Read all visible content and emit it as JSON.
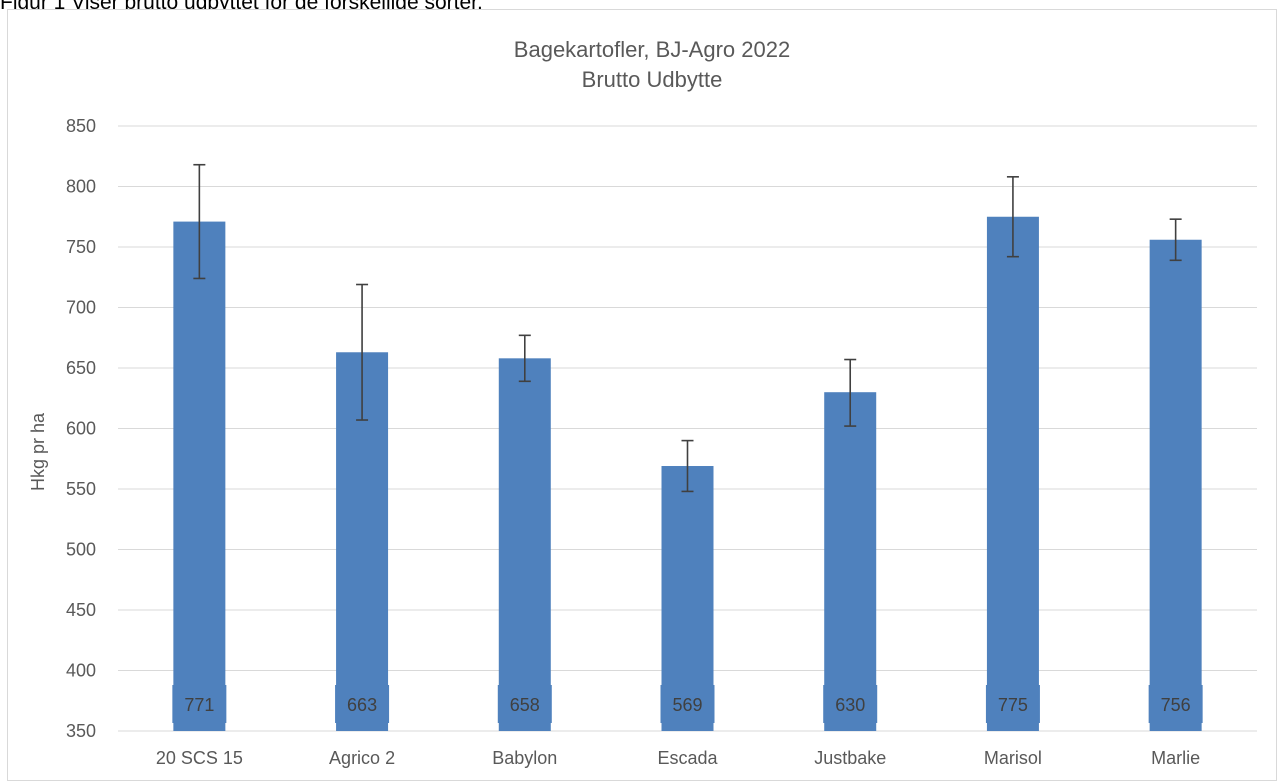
{
  "caption": "Figur 1 Viser brutto udbyttet for de forskellige sorter.",
  "chart_data": {
    "type": "bar",
    "title": "Bagekartofler, BJ-Agro 2022",
    "subtitle": "Brutto Udbytte",
    "xlabel": "",
    "ylabel": "Hkg pr ha",
    "ylim": [
      350,
      850
    ],
    "yticks": [
      350,
      400,
      450,
      500,
      550,
      600,
      650,
      700,
      750,
      800,
      850
    ],
    "grid": true,
    "legend": "none",
    "categories": [
      "20 SCS 15",
      "Agrico 2",
      "Babylon",
      "Escada",
      "Justbake",
      "Marisol",
      "Marlie"
    ],
    "values": [
      771,
      663,
      658,
      569,
      630,
      775,
      756
    ],
    "data_labels": [
      "771",
      "663",
      "658",
      "569",
      "630",
      "775",
      "756"
    ],
    "error_low": [
      724,
      607,
      639,
      548,
      602,
      742,
      739
    ],
    "error_high": [
      818,
      719,
      677,
      590,
      657,
      808,
      773
    ],
    "bar_color": "#4f81bd",
    "error_color": "#404040"
  }
}
